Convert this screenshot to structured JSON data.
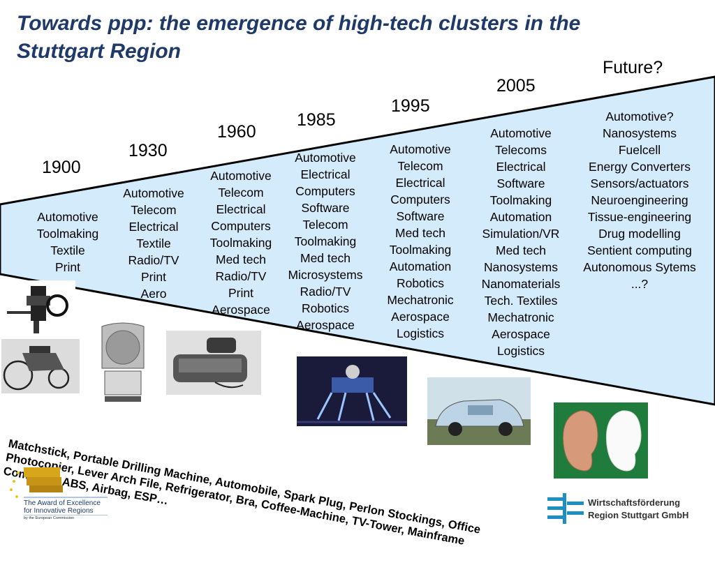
{
  "title": "Towards ppp: the emergence of high-tech clusters in the Stuttgart Region",
  "colors": {
    "title": "#1f3a68",
    "wedge_fill": "#d4ebfb",
    "wedge_stroke": "#000000"
  },
  "timeline": [
    {
      "year": "1900",
      "items": [
        "Automotive",
        "Toolmaking",
        "Textile",
        "Print"
      ]
    },
    {
      "year": "1930",
      "items": [
        "Automotive",
        "Telecom",
        "Electrical",
        "Textile",
        "Radio/TV",
        "Print",
        "Aero"
      ]
    },
    {
      "year": "1960",
      "items": [
        "Automotive",
        "Telecom",
        "Electrical",
        "Computers",
        "Toolmaking",
        "Med tech",
        "Radio/TV",
        "Print",
        "Aerospace"
      ]
    },
    {
      "year": "1985",
      "items": [
        "Automotive",
        "Electrical",
        "Computers",
        "Software",
        "Telecom",
        "Toolmaking",
        "Med tech",
        "Microsystems",
        "Radio/TV",
        "Robotics",
        "Aerospace"
      ]
    },
    {
      "year": "1995",
      "items": [
        "Automotive",
        "Telecom",
        "Electrical",
        "Computers",
        "Software",
        "Med tech",
        "Toolmaking",
        "Automation",
        "Robotics",
        "Mechatronic",
        "Aerospace",
        "Logistics"
      ]
    },
    {
      "year": "2005",
      "items": [
        "Automotive",
        "Telecoms",
        "Electrical",
        "Software",
        "Toolmaking",
        "Automation",
        "Simulation/VR",
        "Med tech",
        "Nanosystems",
        "Nanomaterials",
        "Tech. Textiles",
        "Mechatronic",
        "Aerospace",
        "Logistics"
      ]
    },
    {
      "year": "Future?",
      "items": [
        "Automotive?",
        "Nanosystems",
        "Fuelcell",
        "Energy Converters",
        "Sensors/actuators",
        "Neuroengineering",
        "Tissue-engineering",
        "Drug modelling",
        "Sentient computing",
        "Autonomous Sytems",
        "...?"
      ]
    }
  ],
  "inventions": "Matchstick, Portable Drilling Machine, Automobile, Spark Plug, Perlon Stockings, Office Photocopier, Lever Arch File, Refrigerator, Bra, Coffee-Machine, TV-Tower, Mainframe Computer, ABS, Airbag, ESP…",
  "award": {
    "line1": "The Award of Excellence",
    "line2": "for Innovative Regions",
    "line3": "by the European Commission"
  },
  "organization": {
    "line1": "Wirtschaftsförderung",
    "line2": "Region Stuttgart GmbH"
  }
}
